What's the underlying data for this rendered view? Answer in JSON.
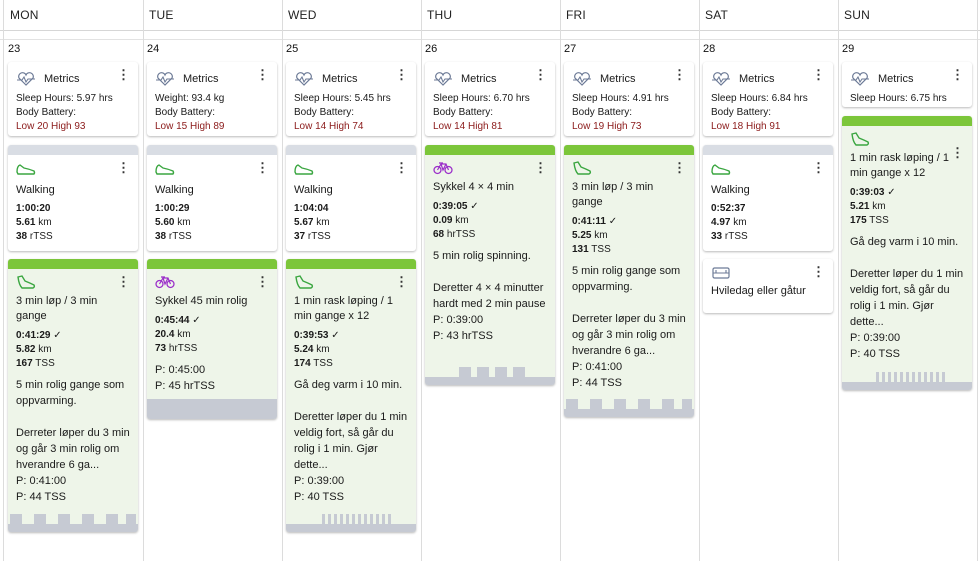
{
  "days": [
    {
      "name": "MON",
      "date": "23"
    },
    {
      "name": "TUE",
      "date": "24"
    },
    {
      "name": "WED",
      "date": "25"
    },
    {
      "name": "THU",
      "date": "26"
    },
    {
      "name": "FRI",
      "date": "27"
    },
    {
      "name": "SAT",
      "date": "28"
    },
    {
      "name": "SUN",
      "date": "29"
    }
  ],
  "metrics": [
    {
      "title": "Metrics",
      "l1": "Sleep Hours: 5.97 hrs",
      "l2": "Body Battery:",
      "range": "Low 20 High 93"
    },
    {
      "title": "Metrics",
      "l1": "Weight: 93.4 kg",
      "l2": "Body Battery:",
      "range": "Low 15 High 89"
    },
    {
      "title": "Metrics",
      "l1": "Sleep Hours: 5.45 hrs",
      "l2": "Body Battery:",
      "range": "Low 14 High 74"
    },
    {
      "title": "Metrics",
      "l1": "Sleep Hours: 6.70 hrs",
      "l2": "Body Battery:",
      "range": "Low 14 High 81"
    },
    {
      "title": "Metrics",
      "l1": "Sleep Hours: 4.91 hrs",
      "l2": "Body Battery:",
      "range": "Low 19 High 73"
    },
    {
      "title": "Metrics",
      "l1": "Sleep Hours: 6.84 hrs",
      "l2": "Body Battery:",
      "range": "Low 18 High 91"
    },
    {
      "title": "Metrics",
      "l1": "Sleep Hours: 6.75 hrs"
    }
  ],
  "walks": [
    {
      "title": "Walking",
      "time": "1:00:20",
      "dist": "5.61",
      "dunit": "km",
      "load": "38",
      "lunit": "rTSS"
    },
    {
      "title": "Walking",
      "time": "1:00:29",
      "dist": "5.60",
      "dunit": "km",
      "load": "38",
      "lunit": "rTSS"
    },
    {
      "title": "Walking",
      "time": "1:04:04",
      "dist": "5.67",
      "dunit": "km",
      "load": "37",
      "lunit": "rTSS"
    },
    {
      "title": "Walking",
      "time": "0:52:37",
      "dist": "4.97",
      "dunit": "km",
      "load": "33",
      "lunit": "rTSS"
    }
  ],
  "workouts": {
    "mon": {
      "title": "3 min løp / 3 min gange",
      "time": "0:41:29",
      "dist": "5.82",
      "dunit": "km",
      "load": "167",
      "lunit": "TSS",
      "desc": "5 min rolig gange som oppvarming.\n\nDerreter løper du 3 min og går 3 min rolig om hverandre 6 ga...",
      "p_time": "P: 0:41:00",
      "p_load": "P: 44 TSS"
    },
    "tue": {
      "title": "Sykkel 45 min rolig",
      "time": "0:45:44",
      "dist": "20.4",
      "dunit": "km",
      "load": "73",
      "lunit": "hrTSS",
      "p_time": "P: 0:45:00",
      "p_load": "P: 45 hrTSS"
    },
    "wed": {
      "title": "1 min rask løping / 1 min gange x 12",
      "time": "0:39:53",
      "dist": "5.24",
      "dunit": "km",
      "load": "174",
      "lunit": "TSS",
      "desc": "Gå deg varm i 10 min.\n\nDeretter løper du 1 min veldig fort, så går du rolig i 1 min. Gjør dette...",
      "p_time": "P: 0:39:00",
      "p_load": "P: 40 TSS"
    },
    "thu": {
      "title": "Sykkel 4 × 4 min",
      "time": "0:39:05",
      "dist": "0.09",
      "dunit": "km",
      "load": "68",
      "lunit": "hrTSS",
      "desc": "5 min rolig spinning.\n\nDeretter 4 × 4 minutter hardt med 2 min pause",
      "p_time": "P: 0:39:00",
      "p_load": "P: 43 hrTSS"
    },
    "fri": {
      "title": "3 min løp / 3 min gange",
      "time": "0:41:11",
      "dist": "5.25",
      "dunit": "km",
      "load": "131",
      "lunit": "TSS",
      "desc": "5 min rolig gange som oppvarming.\n\nDerreter løper du 3 min og går 3 min rolig om hverandre 6 ga...",
      "p_time": "P: 0:41:00",
      "p_load": "P: 44 TSS"
    },
    "sat_rest": {
      "title": "Hviledag eller gåtur"
    },
    "sun": {
      "title": "1 min rask løping / 1 min gange x 12",
      "time": "0:39:03",
      "dist": "5.21",
      "dunit": "km",
      "load": "175",
      "lunit": "TSS",
      "desc": "Gå deg varm i 10 min.\n\nDeretter løper du 1 min veldig fort, så går du rolig i 1 min. Gjør dette...",
      "p_time": "P: 0:39:00",
      "p_load": "P: 40 TSS"
    }
  },
  "colors": {
    "complete": "#7cc63a",
    "pending": "#d9dde4",
    "run_icon": "#3aa640",
    "bike_icon": "#9b2fc9",
    "strip": "#c6cad3"
  },
  "icons": {
    "metrics": "heart-pulse-icon",
    "walk": "shoe-icon",
    "run": "running-shoe-icon",
    "bike": "bicycle-icon",
    "rest": "couch-icon",
    "menu": "kebab-menu-icon",
    "check": "checkmark-icon"
  }
}
